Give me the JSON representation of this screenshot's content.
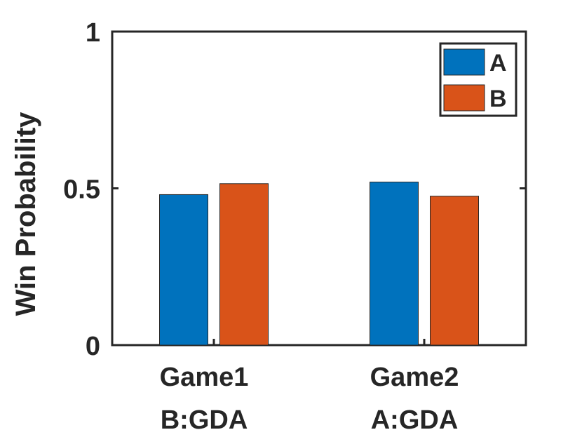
{
  "chart_data": {
    "type": "bar",
    "title": "",
    "xlabel": "",
    "ylabel": "Win Probability",
    "categories": [
      {
        "line1": "Game1",
        "line2": "B:GDA"
      },
      {
        "line1": "Game2",
        "line2": "A:GDA"
      }
    ],
    "series": [
      {
        "name": "A",
        "color": "#0072BD",
        "values": [
          0.48,
          0.52
        ]
      },
      {
        "name": "B",
        "color": "#D95319",
        "values": [
          0.515,
          0.475
        ]
      }
    ],
    "ylim": [
      0,
      1
    ],
    "yticks": [
      0,
      0.5,
      1
    ],
    "ytick_labels": [
      "0",
      "0.5",
      "1"
    ],
    "grid": false,
    "legend_position": "top-right"
  }
}
